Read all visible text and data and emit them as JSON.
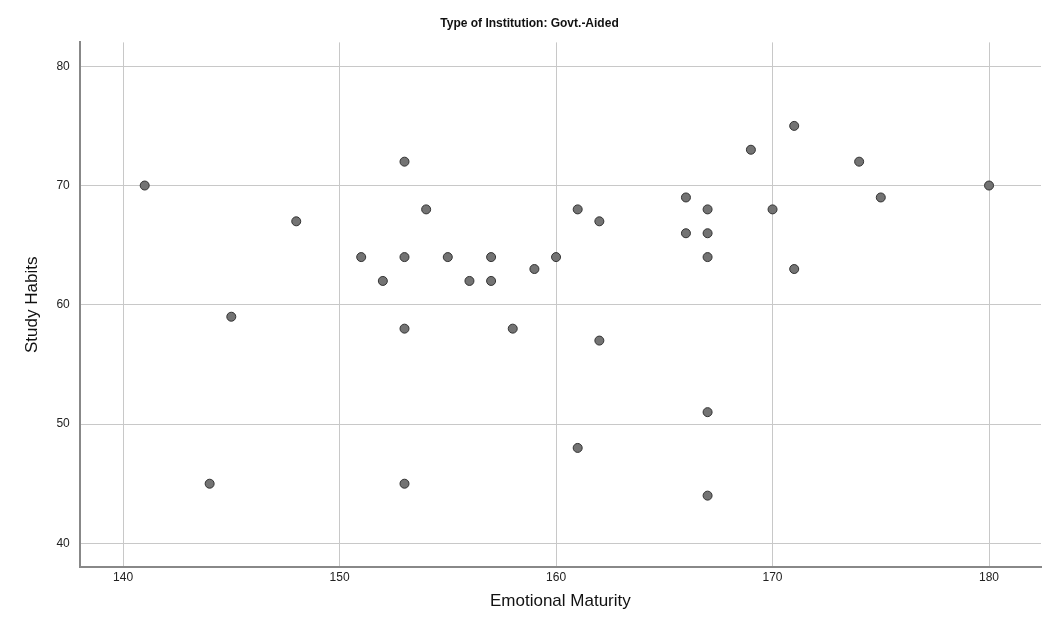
{
  "chart_data": {
    "type": "scatter",
    "title": "Type of Institution: Govt.-Aided",
    "xlabel": "Emotional Maturity",
    "ylabel": "Study Habits",
    "x": [
      141,
      144,
      145,
      148,
      151,
      152,
      153,
      153,
      153,
      153,
      154,
      155,
      156,
      157,
      157,
      158,
      159,
      160,
      161,
      161,
      162,
      162,
      166,
      166,
      167,
      167,
      167,
      167,
      167,
      169,
      170,
      171,
      171,
      174,
      175,
      180
    ],
    "series": [
      {
        "color": "#737373",
        "values": [
          70,
          45,
          59,
          67,
          64,
          62,
          72,
          64,
          58,
          45,
          68,
          64,
          62,
          64,
          62,
          58,
          63,
          64,
          68,
          48,
          67,
          57,
          69,
          66,
          68,
          66,
          64,
          51,
          44,
          73,
          68,
          75,
          63,
          72,
          69,
          70
        ]
      }
    ],
    "xlim": [
      138,
      182.4
    ],
    "xticks": [
      140,
      150,
      160,
      170,
      180
    ],
    "ylim": [
      38,
      82
    ],
    "yticks": [
      40,
      50,
      60,
      70,
      80
    ],
    "grid": true,
    "legend": false,
    "marker": "circle"
  }
}
